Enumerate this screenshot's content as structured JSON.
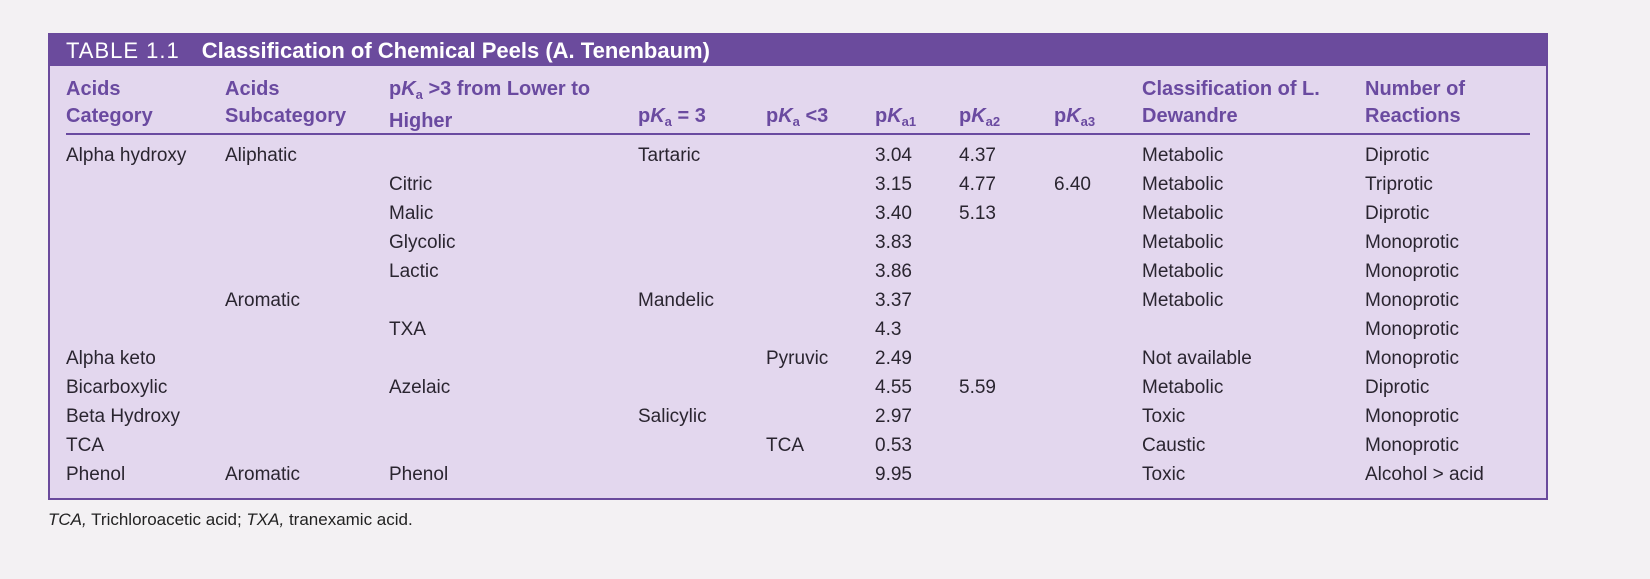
{
  "table": {
    "number": "TABLE 1.1",
    "title": "Classification of Chemical Peels (A. Tenenbaum)",
    "headers": [
      {
        "line1": "Acids",
        "line2": "Category"
      },
      {
        "line1": "Acids",
        "line2": "Subcategory"
      },
      {
        "line1_pre": "p",
        "line1_k": "K",
        "line1_sub": "a",
        "line1_post": " >3 from Lower to",
        "line2": "Higher"
      },
      {
        "pre": "p",
        "k": "K",
        "sub": "a",
        "post": " = 3"
      },
      {
        "pre": "p",
        "k": "K",
        "sub": "a",
        "post": " <3"
      },
      {
        "pre": "p",
        "k": "K",
        "sub": "a1",
        "post": ""
      },
      {
        "pre": "p",
        "k": "K",
        "sub": "a2",
        "post": ""
      },
      {
        "pre": "p",
        "k": "K",
        "sub": "a3",
        "post": ""
      },
      {
        "line1": "Classification of L.",
        "line2": "Dewandre"
      },
      {
        "line1": "Number of",
        "line2": "Reactions"
      }
    ],
    "rows": [
      [
        "Alpha hydroxy",
        "Aliphatic",
        "",
        "Tartaric",
        "",
        "3.04",
        "4.37",
        "",
        "Metabolic",
        "Diprotic"
      ],
      [
        "",
        "",
        "Citric",
        "",
        "",
        "3.15",
        "4.77",
        "6.40",
        "Metabolic",
        "Triprotic"
      ],
      [
        "",
        "",
        "Malic",
        "",
        "",
        "3.40",
        "5.13",
        "",
        "Metabolic",
        "Diprotic"
      ],
      [
        "",
        "",
        "Glycolic",
        "",
        "",
        "3.83",
        "",
        "",
        "Metabolic",
        "Monoprotic"
      ],
      [
        "",
        "",
        "Lactic",
        "",
        "",
        "3.86",
        "",
        "",
        "Metabolic",
        "Monoprotic"
      ],
      [
        "",
        "Aromatic",
        "",
        "Mandelic",
        "",
        "3.37",
        "",
        "",
        "Metabolic",
        "Monoprotic"
      ],
      [
        "",
        "",
        "TXA",
        "",
        "",
        "4.3",
        "",
        "",
        "",
        "Monoprotic"
      ],
      [
        "Alpha keto",
        "",
        "",
        "",
        "Pyruvic",
        "2.49",
        "",
        "",
        "Not available",
        "Monoprotic"
      ],
      [
        "Bicarboxylic",
        "",
        "Azelaic",
        "",
        "",
        "4.55",
        "5.59",
        "",
        "Metabolic",
        "Diprotic"
      ],
      [
        "Beta Hydroxy",
        "",
        "",
        "Salicylic",
        "",
        "2.97",
        "",
        "",
        "Toxic",
        "Monoprotic"
      ],
      [
        "TCA",
        "",
        "",
        "",
        "TCA",
        "0.53",
        "",
        "",
        "Caustic",
        "Monoprotic"
      ],
      [
        "Phenol",
        "Aromatic",
        "Phenol",
        "",
        "",
        "9.95",
        "",
        "",
        "Toxic",
        "Alcohol > acid"
      ]
    ]
  },
  "footnote": {
    "abbr1": "TCA,",
    "def1": " Trichloroacetic acid; ",
    "abbr2": "TXA,",
    "def2": " tranexamic acid."
  },
  "colors": {
    "header_bar": "#6b4b9d",
    "table_bg": "#e3d7ee",
    "heading_text": "#6a4aa0"
  }
}
